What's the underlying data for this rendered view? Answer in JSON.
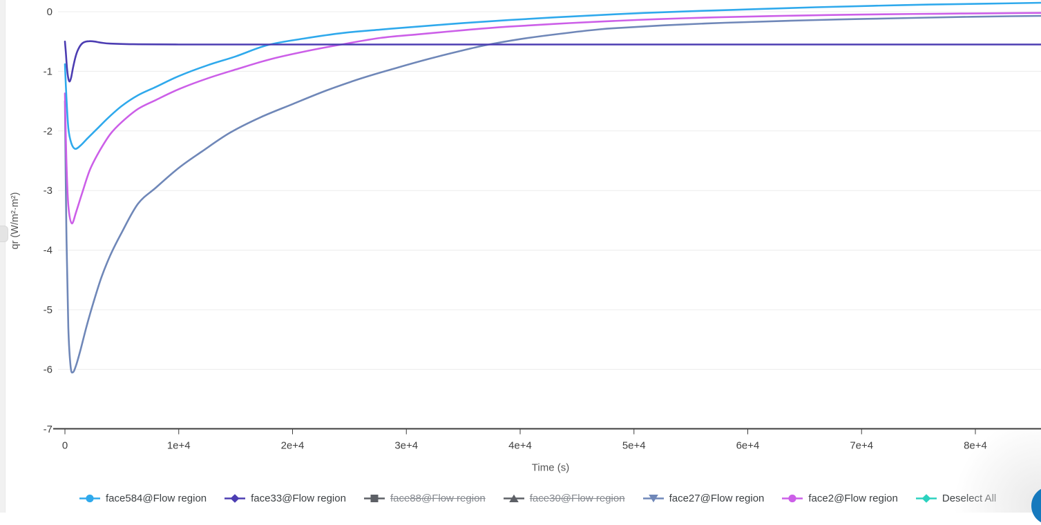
{
  "page": {
    "background": "#ffffff"
  },
  "sidebar": {
    "strip": "collapsed-panel-strip",
    "handle": "drag-handle"
  },
  "fab": {
    "color": "#1679bd"
  },
  "chart_data": {
    "type": "line",
    "title": "",
    "xlabel": "Time (s)",
    "ylabel": "qr (W/m²·m²)",
    "grid": "horizontal",
    "legend_position": "bottom",
    "xlim": [
      0,
      85800
    ],
    "ylim": [
      -7,
      0.2
    ],
    "x_ticks": {
      "labels": [
        "0",
        "1e+4",
        "2e+4",
        "3e+4",
        "4e+4",
        "5e+4",
        "6e+4",
        "7e+4",
        "8e+4"
      ],
      "values": [
        0,
        10000,
        20000,
        30000,
        40000,
        50000,
        60000,
        70000,
        80000
      ]
    },
    "y_ticks": {
      "labels": [
        "0",
        "-1",
        "-2",
        "-3",
        "-4",
        "-5",
        "-6",
        "-7"
      ],
      "values": [
        0,
        -1,
        -2,
        -3,
        -4,
        -5,
        -6,
        -7
      ]
    },
    "series": [
      {
        "name": "face584@Flow region",
        "color": "#2fa9ec",
        "marker": "circle",
        "deselected": false,
        "z": 3,
        "points": [
          [
            0,
            -0.88
          ],
          [
            120,
            -1.4
          ],
          [
            300,
            -1.95
          ],
          [
            550,
            -2.2
          ],
          [
            900,
            -2.3
          ],
          [
            1400,
            -2.24
          ],
          [
            2000,
            -2.12
          ],
          [
            2800,
            -1.97
          ],
          [
            3800,
            -1.78
          ],
          [
            5000,
            -1.58
          ],
          [
            6430,
            -1.4
          ],
          [
            8000,
            -1.26
          ],
          [
            10000,
            -1.08
          ],
          [
            12500,
            -0.9
          ],
          [
            15000,
            -0.75
          ],
          [
            17800,
            -0.56
          ],
          [
            21000,
            -0.45
          ],
          [
            24500,
            -0.355
          ],
          [
            27700,
            -0.3
          ],
          [
            31000,
            -0.25
          ],
          [
            35000,
            -0.19
          ],
          [
            39000,
            -0.14
          ],
          [
            43000,
            -0.095
          ],
          [
            47000,
            -0.055
          ],
          [
            51000,
            -0.02
          ],
          [
            56000,
            0.015
          ],
          [
            61000,
            0.045
          ],
          [
            66000,
            0.075
          ],
          [
            71000,
            0.1
          ],
          [
            76000,
            0.12
          ],
          [
            81000,
            0.135
          ],
          [
            85800,
            0.15
          ]
        ]
      },
      {
        "name": "face33@Flow region",
        "color": "#4c3db2",
        "marker": "diamond",
        "deselected": false,
        "z": 4,
        "points": [
          [
            0,
            -0.5
          ],
          [
            80,
            -0.68
          ],
          [
            180,
            -0.95
          ],
          [
            300,
            -1.12
          ],
          [
            420,
            -1.17
          ],
          [
            550,
            -1.1
          ],
          [
            700,
            -0.95
          ],
          [
            900,
            -0.78
          ],
          [
            1100,
            -0.66
          ],
          [
            1400,
            -0.555
          ],
          [
            1700,
            -0.51
          ],
          [
            2100,
            -0.495
          ],
          [
            2600,
            -0.5
          ],
          [
            3200,
            -0.52
          ],
          [
            4000,
            -0.535
          ],
          [
            6000,
            -0.545
          ],
          [
            10000,
            -0.55
          ],
          [
            20000,
            -0.55
          ],
          [
            40000,
            -0.55
          ],
          [
            60000,
            -0.55
          ],
          [
            85800,
            -0.55
          ]
        ]
      },
      {
        "name": "face88@Flow region",
        "color": "#5d6066",
        "marker": "square",
        "deselected": true,
        "z": 0,
        "points": []
      },
      {
        "name": "face30@Flow region",
        "color": "#5d6066",
        "marker": "triangle-up",
        "deselected": true,
        "z": 0,
        "points": []
      },
      {
        "name": "face27@Flow region",
        "color": "#6f87b8",
        "marker": "triangle-down",
        "deselected": false,
        "z": 1,
        "points": [
          [
            0,
            -1.5
          ],
          [
            120,
            -3.6
          ],
          [
            300,
            -5.3
          ],
          [
            500,
            -5.95
          ],
          [
            700,
            -6.05
          ],
          [
            1000,
            -5.92
          ],
          [
            1400,
            -5.65
          ],
          [
            1900,
            -5.28
          ],
          [
            2500,
            -4.88
          ],
          [
            3200,
            -4.46
          ],
          [
            4000,
            -4.08
          ],
          [
            5000,
            -3.7
          ],
          [
            6430,
            -3.22
          ],
          [
            8000,
            -2.95
          ],
          [
            10000,
            -2.62
          ],
          [
            12000,
            -2.35
          ],
          [
            14500,
            -2.03
          ],
          [
            17200,
            -1.77
          ],
          [
            20000,
            -1.55
          ],
          [
            23000,
            -1.32
          ],
          [
            26000,
            -1.12
          ],
          [
            29000,
            -0.95
          ],
          [
            32000,
            -0.79
          ],
          [
            34500,
            -0.67
          ],
          [
            37000,
            -0.56
          ],
          [
            40000,
            -0.46
          ],
          [
            43500,
            -0.37
          ],
          [
            47000,
            -0.295
          ],
          [
            48900,
            -0.27
          ],
          [
            53000,
            -0.225
          ],
          [
            58000,
            -0.185
          ],
          [
            63000,
            -0.155
          ],
          [
            68000,
            -0.13
          ],
          [
            73000,
            -0.11
          ],
          [
            78000,
            -0.09
          ],
          [
            83000,
            -0.075
          ],
          [
            85800,
            -0.07
          ]
        ]
      },
      {
        "name": "face2@Flow region",
        "color": "#cc5fe8",
        "marker": "circle",
        "deselected": false,
        "z": 2,
        "points": [
          [
            0,
            -1.37
          ],
          [
            120,
            -2.45
          ],
          [
            300,
            -3.25
          ],
          [
            600,
            -3.55
          ],
          [
            1000,
            -3.35
          ],
          [
            1500,
            -3.05
          ],
          [
            2200,
            -2.65
          ],
          [
            3000,
            -2.35
          ],
          [
            4000,
            -2.05
          ],
          [
            5000,
            -1.85
          ],
          [
            6430,
            -1.63
          ],
          [
            8000,
            -1.48
          ],
          [
            10000,
            -1.3
          ],
          [
            12500,
            -1.12
          ],
          [
            15000,
            -0.97
          ],
          [
            18000,
            -0.8
          ],
          [
            21000,
            -0.67
          ],
          [
            24000,
            -0.56
          ],
          [
            27700,
            -0.44
          ],
          [
            31000,
            -0.38
          ],
          [
            35000,
            -0.31
          ],
          [
            39000,
            -0.25
          ],
          [
            43000,
            -0.205
          ],
          [
            47000,
            -0.165
          ],
          [
            52000,
            -0.125
          ],
          [
            57000,
            -0.095
          ],
          [
            62000,
            -0.073
          ],
          [
            67000,
            -0.056
          ],
          [
            72000,
            -0.043
          ],
          [
            77000,
            -0.033
          ],
          [
            82000,
            -0.025
          ],
          [
            85800,
            -0.02
          ]
        ]
      },
      {
        "name": "Deselect All",
        "color": "#2bd2bf",
        "marker": "diamond",
        "deselected": false,
        "z": 0,
        "points": []
      }
    ],
    "style": {
      "grid_color": "#ececec",
      "axis_color": "#3d3d3d",
      "tick_text_color": "#3f3f3f",
      "axis_title_color": "#555555"
    }
  }
}
